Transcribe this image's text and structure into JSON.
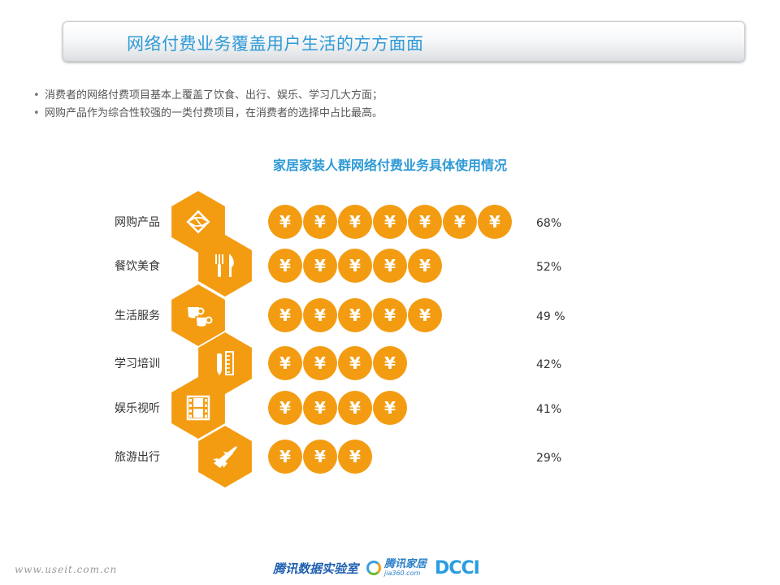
{
  "header": {
    "title": "网络付费业务覆盖用户生活的方方面面"
  },
  "bullets": [
    "消费者的网络付费项目基本上覆盖了饮食、出行、娱乐、学习几大方面；",
    "网购产品作为综合性较强的一类付费项目，在消费者的选择中占比最高。"
  ],
  "colors": {
    "accent": "#f39c12",
    "title_blue": "#2f9ad6",
    "text": "#333333"
  },
  "chart_data": {
    "type": "bar",
    "title": "家居家装人群网络付费业务具体使用情况",
    "coin_symbol": "¥",
    "categories": [
      "网购产品",
      "餐饮美食",
      "生活服务",
      "学习培训",
      "娱乐视听",
      "旅游出行"
    ],
    "values": [
      68,
      52,
      49,
      42,
      41,
      29
    ],
    "value_labels": [
      "68%",
      "52%",
      "49 %",
      "42%",
      "41%",
      "29%"
    ],
    "coin_counts": [
      7,
      5,
      5,
      4,
      4,
      3
    ],
    "icons": [
      "box-icon",
      "fork-knife-icon",
      "cups-icon",
      "ruler-pencil-icon",
      "film-icon",
      "airplane-icon"
    ]
  },
  "footer": {
    "url": "www.useit.com.cn",
    "logo_lab": "腾讯数据实验室",
    "logo_jia": "腾讯家居",
    "logo_jia_sub": "jia360.com",
    "logo_dcci": "DCCI"
  }
}
